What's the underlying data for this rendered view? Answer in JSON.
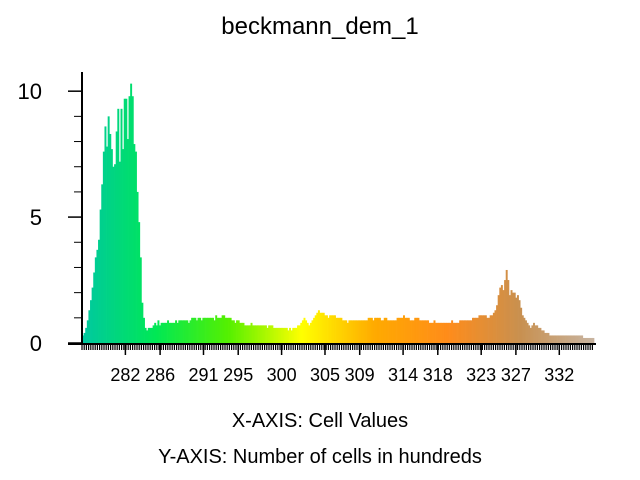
{
  "chart_data": {
    "type": "bar",
    "title": "beckmann_dem_1",
    "xlabel": "X-AXIS: Cell Values",
    "ylabel": "Y-AXIS: Number of cells in hundreds",
    "xlim": [
      277,
      336
    ],
    "ylim": [
      0,
      11
    ],
    "x_ticks": [
      282,
      286,
      291,
      295,
      300,
      305,
      309,
      314,
      318,
      323,
      327,
      332
    ],
    "y_ticks": [
      0,
      5,
      10
    ],
    "grid": false,
    "legend": "none",
    "color_ramp": [
      "#00C8A0",
      "#00E855",
      "#55F000",
      "#FFFF00",
      "#FFAA00",
      "#FF8C1A",
      "#C89050",
      "#C8B4A0"
    ],
    "values": [
      0.3,
      0.4,
      0.6,
      0.9,
      1.3,
      1.7,
      2.2,
      2.8,
      3.4,
      3.7,
      4.1,
      5.3,
      6.3,
      7.6,
      8.6,
      7.8,
      9.0,
      8.3,
      7.7,
      7.0,
      7.1,
      8.4,
      9.3,
      7.2,
      9.3,
      7.7,
      9.7,
      9.7,
      8.1,
      9.8,
      10.3,
      9.8,
      7.9,
      7.6,
      6.0,
      4.8,
      3.4,
      1.6,
      1.0,
      0.6,
      0.5,
      0.6,
      0.6,
      0.6,
      0.7,
      0.8,
      0.7,
      0.9,
      0.7,
      0.8,
      0.8,
      0.8,
      0.8,
      0.9,
      0.8,
      0.8,
      0.8,
      0.8,
      0.9,
      0.8,
      0.9,
      0.9,
      0.9,
      0.9,
      0.9,
      0.9,
      0.8,
      0.9,
      1.0,
      1.0,
      1.0,
      0.9,
      1.0,
      1.0,
      0.9,
      1.0,
      1.0,
      1.0,
      1.0,
      1.0,
      1.0,
      1.0,
      0.9,
      1.1,
      1.0,
      1.0,
      1.0,
      1.1,
      1.1,
      1.0,
      1.0,
      1.0,
      1.0,
      0.9,
      0.9,
      0.8,
      0.9,
      0.9,
      0.8,
      0.8,
      0.8,
      0.7,
      0.7,
      0.7,
      0.7,
      0.8,
      0.7,
      0.7,
      0.7,
      0.7,
      0.7,
      0.7,
      0.7,
      0.7,
      0.7,
      0.6,
      0.7,
      0.7,
      0.7,
      0.6,
      0.6,
      0.6,
      0.6,
      0.6,
      0.6,
      0.6,
      0.6,
      0.6,
      0.5,
      0.6,
      0.5,
      0.6,
      0.6,
      0.6,
      0.7,
      0.7,
      0.8,
      0.9,
      1.0,
      0.9,
      0.8,
      0.7,
      0.8,
      0.9,
      1.0,
      1.1,
      1.2,
      1.3,
      1.2,
      1.2,
      1.2,
      1.1,
      1.1,
      1.0,
      1.1,
      1.1,
      1.1,
      1.1,
      1.0,
      1.0,
      1.0,
      1.0,
      0.9,
      0.9,
      0.9,
      0.8,
      0.9,
      0.9,
      0.9,
      0.9,
      0.9,
      0.9,
      0.9,
      0.9,
      0.9,
      0.9,
      0.9,
      0.9,
      1.0,
      1.0,
      1.0,
      0.9,
      1.0,
      1.0,
      1.0,
      1.0,
      0.9,
      0.9,
      1.0,
      1.0,
      0.9,
      0.9,
      0.9,
      0.9,
      0.9,
      0.9,
      1.0,
      1.0,
      1.0,
      1.0,
      1.1,
      1.0,
      1.0,
      1.0,
      0.9,
      0.9,
      0.9,
      1.0,
      1.0,
      1.0,
      0.9,
      0.9,
      0.9,
      0.9,
      0.9,
      0.9,
      0.8,
      0.8,
      0.8,
      0.9,
      0.8,
      0.8,
      0.8,
      0.8,
      0.8,
      0.8,
      0.8,
      0.8,
      0.8,
      0.8,
      0.9,
      0.8,
      0.8,
      0.8,
      0.8,
      0.9,
      0.9,
      0.9,
      0.9,
      0.9,
      0.9,
      0.9,
      0.9,
      1.0,
      1.0,
      1.0,
      1.0,
      1.1,
      1.1,
      1.1,
      1.1,
      1.1,
      1.0,
      1.0,
      1.1,
      1.1,
      1.2,
      1.3,
      1.5,
      1.9,
      2.2,
      2.3,
      2.1,
      2.5,
      2.9,
      2.5,
      1.9,
      2.1,
      2.0,
      2.0,
      1.8,
      1.9,
      1.7,
      1.4,
      1.1,
      1.0,
      0.9,
      0.8,
      0.7,
      0.6,
      0.7,
      0.8,
      0.7,
      0.7,
      0.6,
      0.6,
      0.5,
      0.5,
      0.4,
      0.4,
      0.4,
      0.3,
      0.3,
      0.3,
      0.3,
      0.3,
      0.3,
      0.3,
      0.3,
      0.3,
      0.3,
      0.3,
      0.3,
      0.3,
      0.3,
      0.3,
      0.3,
      0.3,
      0.3,
      0.3,
      0.3,
      0.3,
      0.2,
      0.2,
      0.2,
      0.2,
      0.2,
      0.2,
      0.2
    ]
  }
}
